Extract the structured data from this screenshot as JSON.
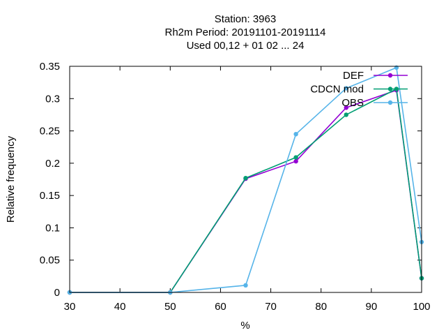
{
  "chart_data": {
    "type": "line",
    "title_lines": [
      "Station:     3963",
      "Rh2m  Period: 20191101-20191114",
      "Used  00,12  + 01 02 ... 24"
    ],
    "xlabel": "%",
    "ylabel": "Relative frequency",
    "xlim": [
      30,
      100
    ],
    "ylim": [
      0,
      0.35
    ],
    "xticks": [
      30,
      40,
      50,
      60,
      70,
      80,
      90,
      100
    ],
    "yticks": [
      0,
      0.05,
      0.1,
      0.15,
      0.2,
      0.25,
      0.3,
      0.35
    ],
    "xtick_labels": [
      "30",
      "40",
      "50",
      "60",
      "70",
      "80",
      "90",
      "100"
    ],
    "ytick_labels": [
      "0",
      "0.05",
      "0.1",
      "0.15",
      "0.2",
      "0.25",
      "0.3",
      "0.35"
    ],
    "grid": false,
    "legend_position": "top-right",
    "series": [
      {
        "name": "DEF",
        "color": "#9400d3",
        "x": [
          30,
          50,
          65,
          75,
          85,
          95,
          100
        ],
        "y": [
          0,
          0,
          0.176,
          0.203,
          0.286,
          0.313,
          0.022
        ]
      },
      {
        "name": "CDCN mod",
        "color": "#009e73",
        "x": [
          30,
          50,
          65,
          75,
          85,
          95,
          100
        ],
        "y": [
          0,
          0,
          0.177,
          0.209,
          0.275,
          0.315,
          0.022
        ]
      },
      {
        "name": "OBS",
        "color": "#56b4e9",
        "x": [
          30,
          50,
          65,
          75,
          85,
          95,
          100
        ],
        "y": [
          0,
          0,
          0.011,
          0.245,
          0.316,
          0.348,
          0.078
        ]
      }
    ]
  }
}
